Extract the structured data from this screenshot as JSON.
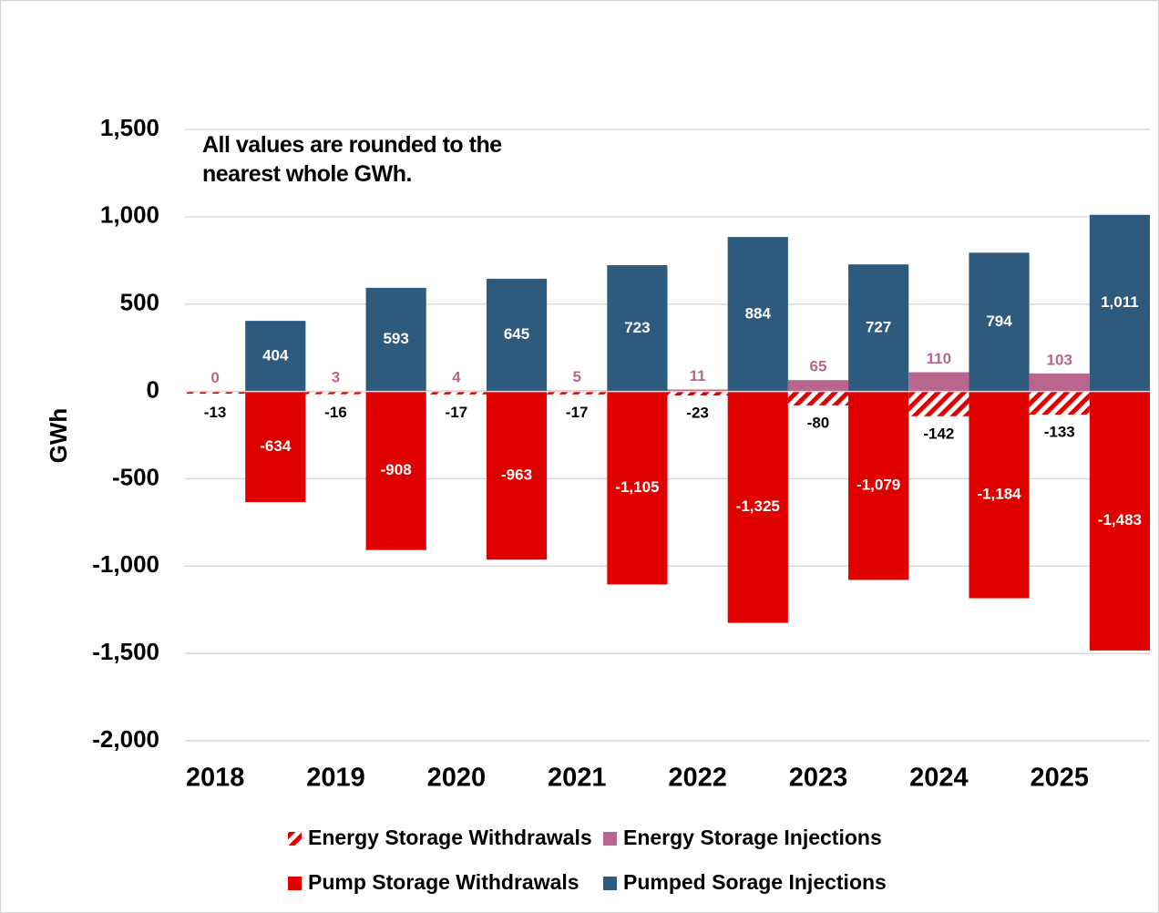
{
  "chart_data": {
    "type": "bar",
    "annotation": "All values are rounded to the nearest whole GWh.",
    "y_label": "GWh",
    "categories": [
      "2018",
      "2019",
      "2020",
      "2021",
      "2022",
      "2023",
      "2024",
      "2025"
    ],
    "series": [
      {
        "name": "Energy Storage Withdrawals",
        "color": "#e00000",
        "pattern": "hatch",
        "group": "es",
        "values": [
          -13,
          -16,
          -17,
          -17,
          -23,
          -80,
          -142,
          -133
        ]
      },
      {
        "name": "Energy Storage Injections",
        "color": "#b8668f",
        "group": "es",
        "values": [
          0,
          3,
          4,
          5,
          11,
          65,
          110,
          103
        ]
      },
      {
        "name": "Pump Storage Withdrawals",
        "color": "#e00000",
        "group": "ps",
        "values": [
          -634,
          -908,
          -963,
          -1105,
          -1325,
          -1079,
          -1184,
          -1483
        ],
        "value_labels": [
          "-634",
          "-908",
          "-963",
          "-1,105",
          "-1,325",
          "-1,079",
          "-1,184",
          "-1,483"
        ]
      },
      {
        "name": "Pumped Sorage Injections",
        "color": "#2e5a7e",
        "group": "ps",
        "values": [
          404,
          593,
          645,
          723,
          884,
          727,
          794,
          1011
        ],
        "value_labels": [
          "404",
          "593",
          "645",
          "723",
          "884",
          "727",
          "794",
          "1,011"
        ]
      }
    ],
    "ylim": [
      -2000,
      1500
    ],
    "yticks": [
      {
        "value": -2000,
        "label": "-2,000"
      },
      {
        "value": -1500,
        "label": "-1,500"
      },
      {
        "value": -1000,
        "label": "-1,000"
      },
      -500,
      0,
      500,
      {
        "value": 1000,
        "label": "1,000"
      },
      {
        "value": 1500,
        "label": "1,500"
      }
    ],
    "grid": true,
    "legend": "bottom"
  }
}
